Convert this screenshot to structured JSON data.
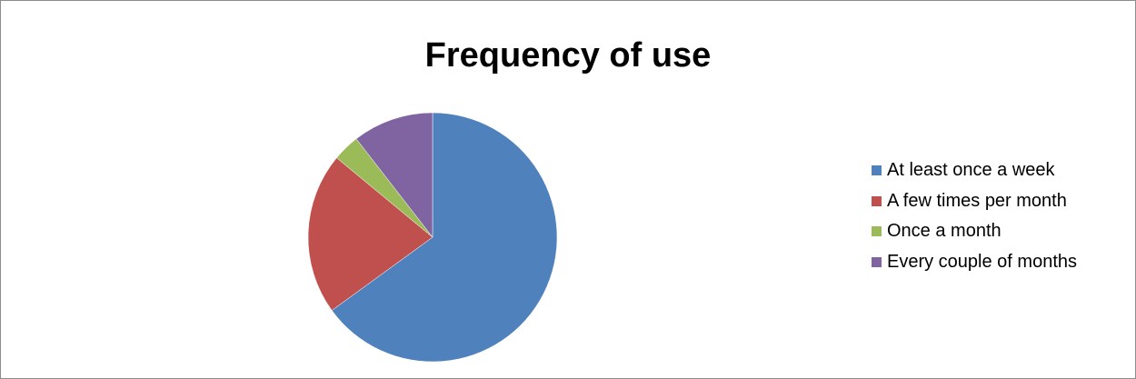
{
  "chart_data": {
    "type": "pie",
    "title": "Frequency of use",
    "categories": [
      "At least once a week",
      "A few times per month",
      "Once a month",
      "Every couple of months"
    ],
    "values": [
      65,
      21,
      3.5,
      10.5
    ],
    "colors": [
      "#4f81bd",
      "#c0504d",
      "#9bbb59",
      "#8064a2"
    ],
    "legend_position": "right",
    "start_angle": "12 o'clock, clockwise"
  }
}
